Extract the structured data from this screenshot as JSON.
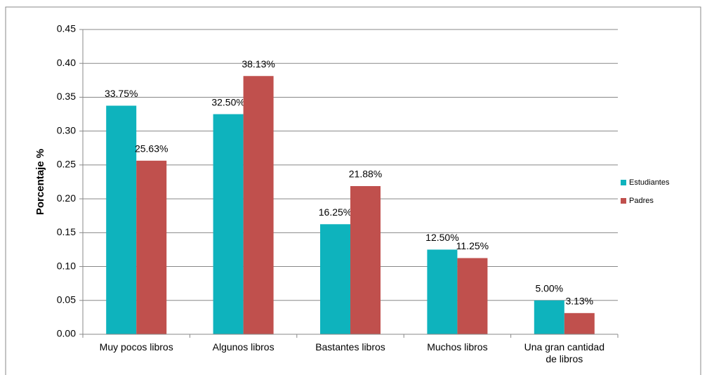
{
  "chart_data": {
    "type": "bar",
    "y_label": "Porcentaje %",
    "categories": [
      "Muy pocos libros",
      "Algunos libros",
      "Bastantes libros",
      "Muchos libros",
      "Una gran cantidad de libros"
    ],
    "series": [
      {
        "name": "Estudiantes",
        "color": "#0eb3bd",
        "values": [
          0.3375,
          0.325,
          0.1625,
          0.125,
          0.05
        ],
        "value_labels": [
          "33.75%",
          "32.50%",
          "16.25%",
          "12.50%",
          "5.00%"
        ]
      },
      {
        "name": "Padres",
        "color": "#c0504d",
        "values": [
          0.2563,
          0.3813,
          0.2188,
          0.1125,
          0.0313
        ],
        "value_labels": [
          "25.63%",
          "38.13%",
          "21.88%",
          "11.25%",
          "3.13%"
        ]
      }
    ],
    "ylim": [
      0,
      0.45
    ],
    "yticks": [
      {
        "value": 0,
        "label": "0.00"
      },
      0.05,
      {
        "value": 0.1,
        "label": "0.10"
      },
      0.15,
      {
        "value": 0.2,
        "label": "0.20"
      },
      0.25,
      {
        "value": 0.3,
        "label": "0.30"
      },
      0.35,
      {
        "value": 0.4,
        "label": "0.40"
      },
      0.45
    ],
    "grid": true,
    "legend": "right"
  }
}
